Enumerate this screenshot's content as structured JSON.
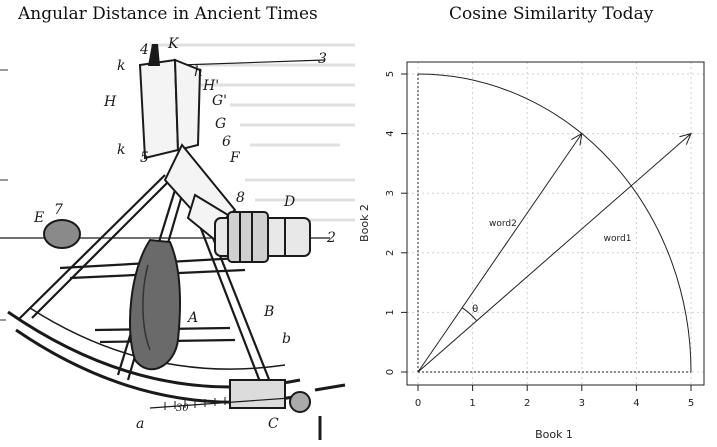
{
  "left": {
    "title": "Angular Distance in Ancient Times",
    "figure_labels": [
      "4",
      "K",
      "k",
      "h",
      "3",
      "H",
      "H'",
      "G'",
      "G",
      "k",
      "6",
      "5",
      "F",
      "8",
      "D",
      "E",
      "7",
      "2",
      "A",
      "B",
      "b",
      "a",
      "30",
      "C"
    ]
  },
  "right": {
    "title": "Cosine Similarity Today"
  },
  "chart_data": {
    "type": "line",
    "title": "Cosine Similarity Today",
    "xlabel": "Book 1",
    "ylabel": "Book 2",
    "xlim": [
      0,
      5
    ],
    "ylim": [
      0,
      5
    ],
    "x_ticks": [
      "0",
      "1",
      "2",
      "3",
      "4",
      "5"
    ],
    "y_ticks": [
      "0",
      "1",
      "2",
      "3",
      "4",
      "5"
    ],
    "grid": true,
    "arc_radius": 5,
    "vectors": [
      {
        "name": "word2",
        "x": 3,
        "y": 4
      },
      {
        "name": "word1",
        "x": 5,
        "y": 4
      }
    ],
    "angle_label": "θ"
  }
}
